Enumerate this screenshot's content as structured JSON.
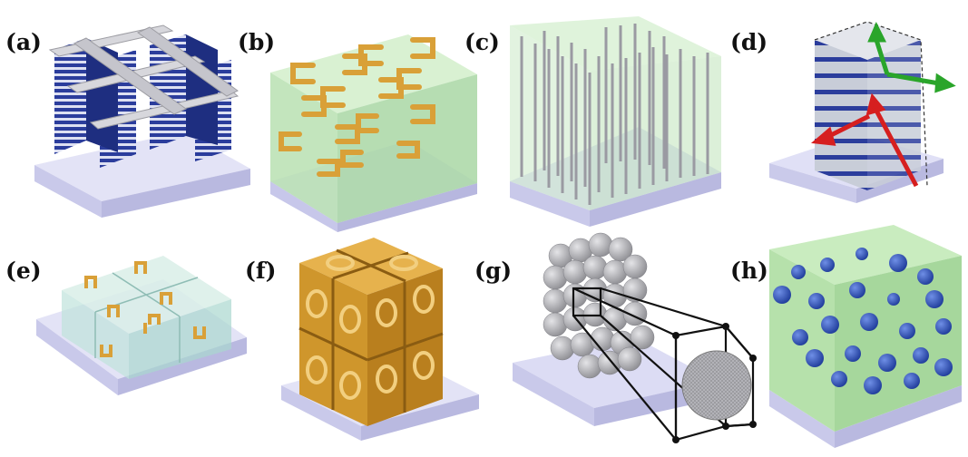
{
  "panels": [
    {
      "label": "(a)",
      "depicts": "fishnet-multilayer"
    },
    {
      "label": "(b)",
      "depicts": "split-ring-layers"
    },
    {
      "label": "(c)",
      "depicts": "nanowire-array"
    },
    {
      "label": "(d)",
      "depicts": "layered-cube-with-arrows"
    },
    {
      "label": "(e)",
      "depicts": "split-ring-cubes"
    },
    {
      "label": "(f)",
      "depicts": "gold-cube-cluster"
    },
    {
      "label": "(g)",
      "depicts": "sphere-lattice-zoom"
    },
    {
      "label": "(h)",
      "depicts": "spheres-in-slab"
    }
  ],
  "colors": {
    "substrate_top": "#e3e3f6",
    "substrate_side": "#c4c4e6",
    "dielectric_green": "#bfe6b8",
    "metal_blue": "#2b3d9c",
    "metal_silver": "#c9c9cf",
    "gold": "#d9a038",
    "arrow_green": "#2aa52a",
    "arrow_red": "#d61f1f",
    "sphere_blue": "#2f55c4",
    "sphere_gray": "#a9a9ad"
  }
}
